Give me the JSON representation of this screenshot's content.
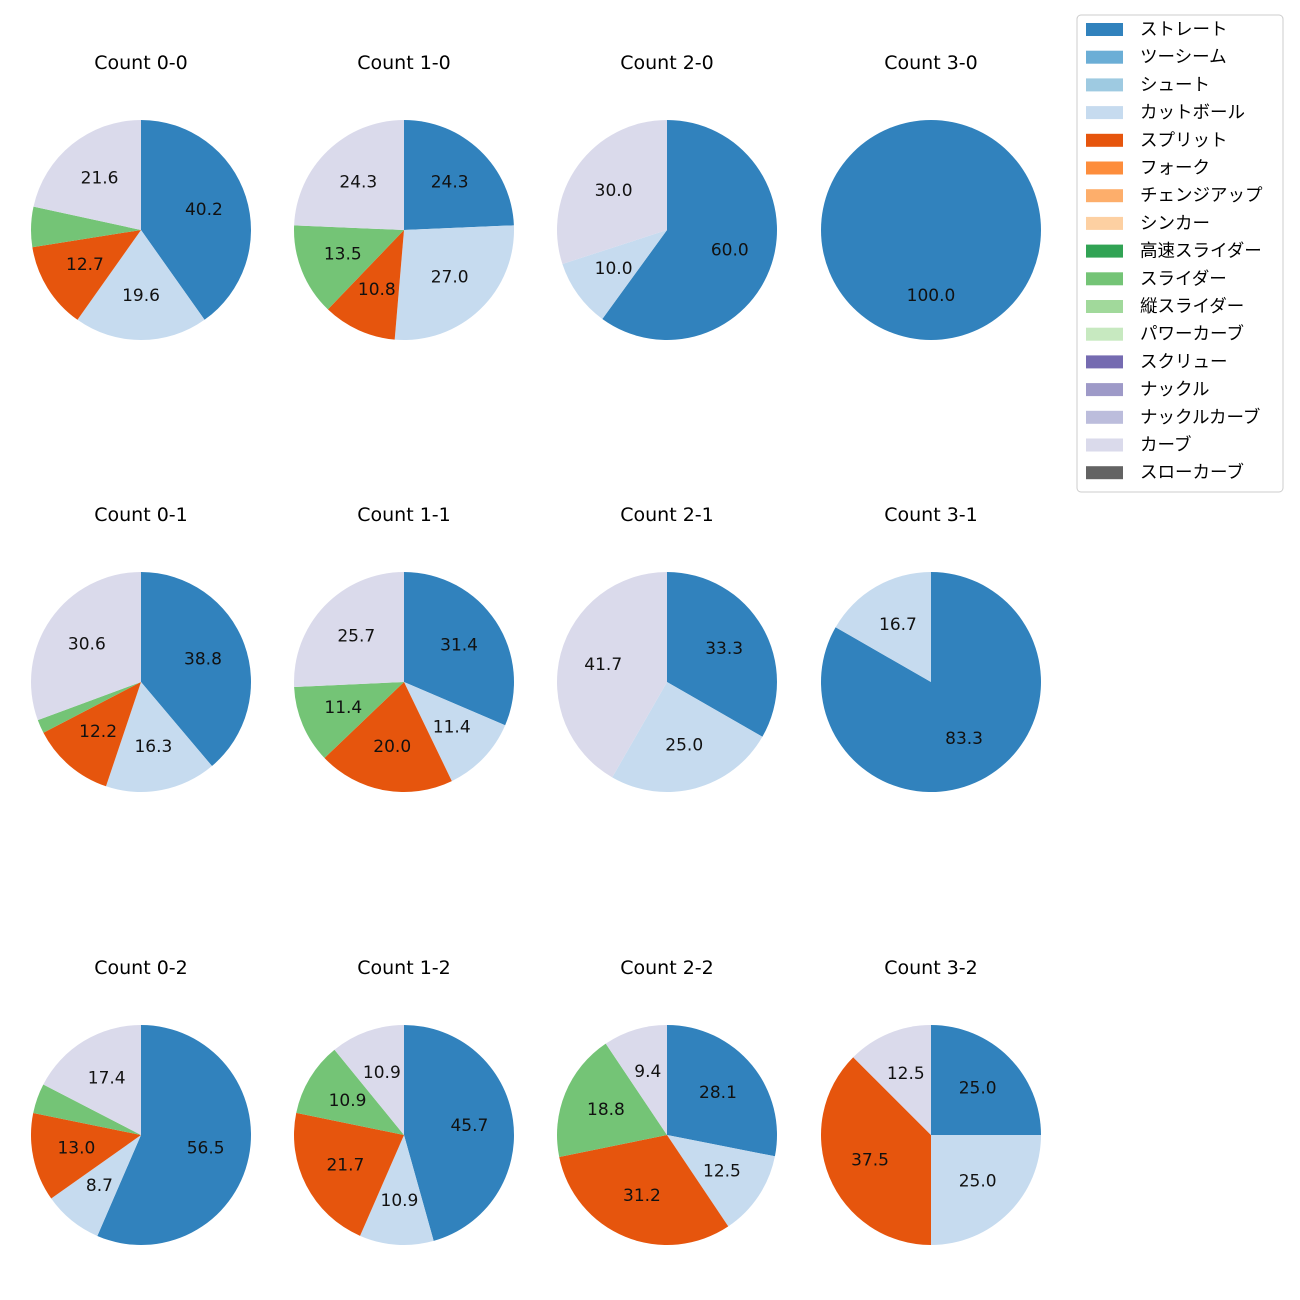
{
  "chart_data": {
    "type": "pie",
    "legend_position": "top-right",
    "legend": [
      {
        "name": "ストレート",
        "color": "#3182bd"
      },
      {
        "name": "ツーシーム",
        "color": "#6baed6"
      },
      {
        "name": "シュート",
        "color": "#9ecae1"
      },
      {
        "name": "カットボール",
        "color": "#c6dbef"
      },
      {
        "name": "スプリット",
        "color": "#e6550d"
      },
      {
        "name": "フォーク",
        "color": "#fd8d3c"
      },
      {
        "name": "チェンジアップ",
        "color": "#fdae6b"
      },
      {
        "name": "シンカー",
        "color": "#fdd0a2"
      },
      {
        "name": "高速スライダー",
        "color": "#31a354"
      },
      {
        "name": "スライダー",
        "color": "#74c476"
      },
      {
        "name": "縦スライダー",
        "color": "#a1d99b"
      },
      {
        "name": "パワーカーブ",
        "color": "#c7e9c0"
      },
      {
        "name": "スクリュー",
        "color": "#756bb1"
      },
      {
        "name": "ナックル",
        "color": "#9e9ac8"
      },
      {
        "name": "ナックルカーブ",
        "color": "#bcbddc"
      },
      {
        "name": "カーブ",
        "color": "#dadaeb"
      },
      {
        "name": "スローカーブ",
        "color": "#636363"
      }
    ],
    "pies": [
      {
        "title": "Count 0-0",
        "slices": [
          {
            "category": "ストレート",
            "value": 40.2,
            "label": "40.2"
          },
          {
            "category": "カットボール",
            "value": 19.6,
            "label": "19.6"
          },
          {
            "category": "スプリット",
            "value": 12.7,
            "label": "12.7"
          },
          {
            "category": "スライダー",
            "value": 5.9,
            "label": ""
          },
          {
            "category": "カーブ",
            "value": 21.6,
            "label": "21.6"
          }
        ]
      },
      {
        "title": "Count 1-0",
        "slices": [
          {
            "category": "ストレート",
            "value": 24.3,
            "label": "24.3"
          },
          {
            "category": "カットボール",
            "value": 27.0,
            "label": "27.0"
          },
          {
            "category": "スプリット",
            "value": 10.8,
            "label": "10.8"
          },
          {
            "category": "スライダー",
            "value": 13.5,
            "label": "13.5"
          },
          {
            "category": "カーブ",
            "value": 24.3,
            "label": "24.3"
          }
        ]
      },
      {
        "title": "Count 2-0",
        "slices": [
          {
            "category": "ストレート",
            "value": 60.0,
            "label": "60.0"
          },
          {
            "category": "カットボール",
            "value": 10.0,
            "label": "10.0"
          },
          {
            "category": "カーブ",
            "value": 30.0,
            "label": "30.0"
          }
        ]
      },
      {
        "title": "Count 3-0",
        "slices": [
          {
            "category": "ストレート",
            "value": 100.0,
            "label": "100.0"
          }
        ]
      },
      {
        "title": "Count 0-1",
        "slices": [
          {
            "category": "ストレート",
            "value": 38.8,
            "label": "38.8"
          },
          {
            "category": "カットボール",
            "value": 16.3,
            "label": "16.3"
          },
          {
            "category": "スプリット",
            "value": 12.2,
            "label": "12.2"
          },
          {
            "category": "スライダー",
            "value": 2.0,
            "label": ""
          },
          {
            "category": "カーブ",
            "value": 30.6,
            "label": "30.6"
          }
        ]
      },
      {
        "title": "Count 1-1",
        "slices": [
          {
            "category": "ストレート",
            "value": 31.4,
            "label": "31.4"
          },
          {
            "category": "カットボール",
            "value": 11.4,
            "label": "11.4"
          },
          {
            "category": "スプリット",
            "value": 20.0,
            "label": "20.0"
          },
          {
            "category": "スライダー",
            "value": 11.4,
            "label": "11.4"
          },
          {
            "category": "カーブ",
            "value": 25.7,
            "label": "25.7"
          }
        ]
      },
      {
        "title": "Count 2-1",
        "slices": [
          {
            "category": "ストレート",
            "value": 33.3,
            "label": "33.3"
          },
          {
            "category": "カットボール",
            "value": 25.0,
            "label": "25.0"
          },
          {
            "category": "カーブ",
            "value": 41.7,
            "label": "41.7"
          }
        ]
      },
      {
        "title": "Count 3-1",
        "slices": [
          {
            "category": "ストレート",
            "value": 83.3,
            "label": "83.3"
          },
          {
            "category": "カットボール",
            "value": 16.7,
            "label": "16.7"
          }
        ]
      },
      {
        "title": "Count 0-2",
        "slices": [
          {
            "category": "ストレート",
            "value": 56.5,
            "label": "56.5"
          },
          {
            "category": "カットボール",
            "value": 8.7,
            "label": "8.7"
          },
          {
            "category": "スプリット",
            "value": 13.0,
            "label": "13.0"
          },
          {
            "category": "スライダー",
            "value": 4.4,
            "label": ""
          },
          {
            "category": "カーブ",
            "value": 17.4,
            "label": "17.4"
          }
        ]
      },
      {
        "title": "Count 1-2",
        "slices": [
          {
            "category": "ストレート",
            "value": 45.7,
            "label": "45.7"
          },
          {
            "category": "カットボール",
            "value": 10.9,
            "label": "10.9"
          },
          {
            "category": "スプリット",
            "value": 21.7,
            "label": "21.7"
          },
          {
            "category": "スライダー",
            "value": 10.9,
            "label": "10.9"
          },
          {
            "category": "カーブ",
            "value": 10.9,
            "label": "10.9"
          }
        ]
      },
      {
        "title": "Count 2-2",
        "slices": [
          {
            "category": "ストレート",
            "value": 28.1,
            "label": "28.1"
          },
          {
            "category": "カットボール",
            "value": 12.5,
            "label": "12.5"
          },
          {
            "category": "スプリット",
            "value": 31.2,
            "label": "31.2"
          },
          {
            "category": "スライダー",
            "value": 18.8,
            "label": "18.8"
          },
          {
            "category": "カーブ",
            "value": 9.4,
            "label": "9.4"
          }
        ]
      },
      {
        "title": "Count 3-2",
        "slices": [
          {
            "category": "ストレート",
            "value": 25.0,
            "label": "25.0"
          },
          {
            "category": "カットボール",
            "value": 25.0,
            "label": "25.0"
          },
          {
            "category": "スプリット",
            "value": 37.5,
            "label": "37.5"
          },
          {
            "category": "カーブ",
            "value": 12.5,
            "label": "12.5"
          }
        ]
      }
    ]
  }
}
